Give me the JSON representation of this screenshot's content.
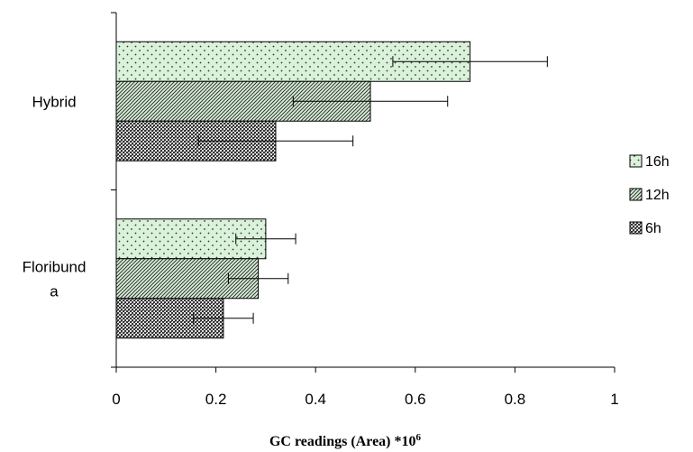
{
  "chart_data": {
    "type": "bar",
    "orientation": "horizontal",
    "categories": [
      "Hybrid",
      "Floribund\na"
    ],
    "series": [
      {
        "name": "16h",
        "values": [
          0.71,
          0.3
        ],
        "errors": [
          0.155,
          0.06
        ],
        "color": "#d9f2d9",
        "pattern": "dots"
      },
      {
        "name": "12h",
        "values": [
          0.51,
          0.285
        ],
        "errors": [
          0.155,
          0.06
        ],
        "color": "#d9f2d9",
        "pattern": "diagonal"
      },
      {
        "name": "6h",
        "values": [
          0.32,
          0.215
        ],
        "errors": [
          0.155,
          0.06
        ],
        "color": "#444444",
        "pattern": "checker"
      }
    ],
    "xlabel": "GC readings (Area) *10",
    "xlabel_superscript": "6",
    "ylabel": "",
    "xlim": [
      0,
      1
    ],
    "xticks": [
      "0",
      "0.2",
      "0.4",
      "0.6",
      "0.8",
      "1"
    ],
    "grid": false,
    "legend_position": "right"
  }
}
